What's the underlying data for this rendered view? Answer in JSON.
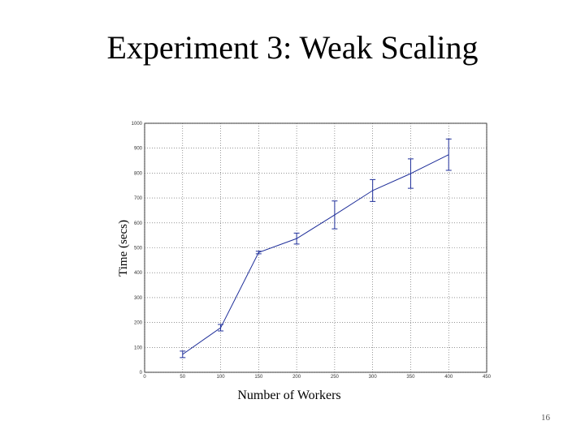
{
  "page_number": "16",
  "chart_data": {
    "type": "line",
    "title": "Experiment 3: Weak Scaling",
    "xlabel": "Number of Workers",
    "ylabel": "Time (secs)",
    "x": [
      50,
      100,
      150,
      200,
      250,
      300,
      350,
      400
    ],
    "series": [
      {
        "name": "Time",
        "color": "#1f2f9a",
        "values": [
          72,
          179,
          481,
          537,
          632,
          730,
          798,
          874
        ],
        "errors": [
          13,
          13,
          5,
          22,
          56,
          44,
          59,
          63
        ]
      }
    ],
    "xlim": [
      0,
      450
    ],
    "xticks": [
      0,
      50,
      100,
      150,
      200,
      250,
      300,
      350,
      400,
      450
    ],
    "ylim": [
      0,
      1000
    ],
    "yticks": [
      0,
      100,
      200,
      300,
      400,
      500,
      600,
      700,
      800,
      900,
      1000
    ],
    "grid": true
  }
}
